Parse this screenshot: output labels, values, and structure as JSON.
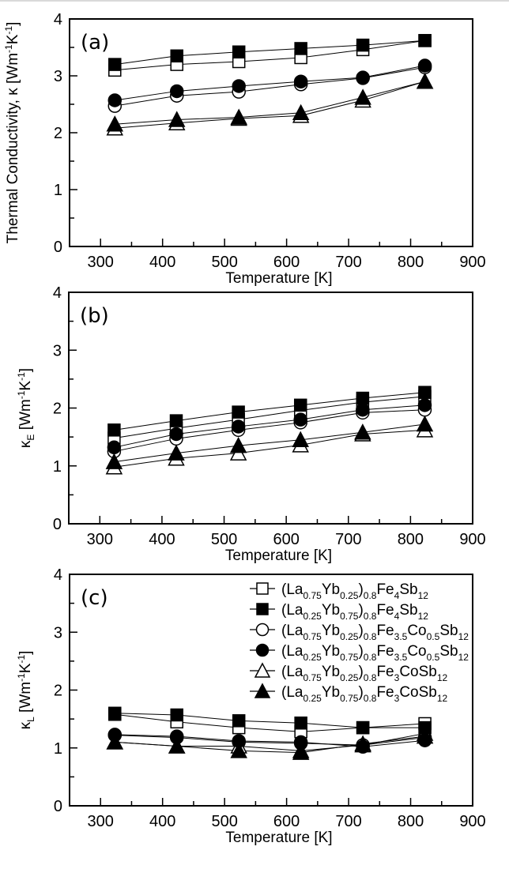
{
  "chart_data": [
    {
      "type": "line",
      "panel_label": "(a)",
      "title": "",
      "xlabel": "Temperature [K]",
      "ylabel": "Thermal Conductivity, κ [Wm-1K-1]",
      "ylabel_parts": {
        "main": "Thermal Conductivity, κ [Wm",
        "sup1": "-1",
        "mid": "K",
        "sup2": "-1",
        "end": "]"
      },
      "xlim": [
        250,
        900
      ],
      "ylim": [
        0,
        4
      ],
      "xticks": [
        300,
        400,
        500,
        600,
        700,
        800,
        900
      ],
      "yticks": [
        0,
        1,
        2,
        3,
        4
      ],
      "grid": false,
      "x": [
        323,
        423,
        523,
        623,
        723,
        823
      ],
      "series": [
        {
          "name": "(La0.75Yb0.25)0.8Fe4Sb12",
          "marker": "square-open",
          "values": [
            3.1,
            3.2,
            3.25,
            3.32,
            3.46,
            3.62
          ]
        },
        {
          "name": "(La0.25Yb0.75)0.8Fe4Sb12",
          "marker": "square-filled",
          "values": [
            3.2,
            3.35,
            3.42,
            3.48,
            3.54,
            3.62
          ]
        },
        {
          "name": "(La0.75Yb0.25)0.8Fe3.5Co0.5Sb12",
          "marker": "circle-open",
          "values": [
            2.47,
            2.65,
            2.72,
            2.85,
            2.96,
            3.15
          ]
        },
        {
          "name": "(La0.25Yb0.75)0.8Fe3.5Co0.5Sb12",
          "marker": "circle-filled",
          "values": [
            2.57,
            2.73,
            2.82,
            2.9,
            2.97,
            3.18
          ]
        },
        {
          "name": "(La0.75Yb0.25)0.8Fe3CoSb12",
          "marker": "triangle-open",
          "values": [
            2.08,
            2.17,
            2.25,
            2.3,
            2.57,
            2.9
          ]
        },
        {
          "name": "(La0.25Yb0.75)0.8Fe3CoSb12",
          "marker": "triangle-filled",
          "values": [
            2.15,
            2.23,
            2.27,
            2.35,
            2.62,
            2.9
          ]
        }
      ]
    },
    {
      "type": "line",
      "panel_label": "(b)",
      "title": "",
      "xlabel": "Temperature [K]",
      "ylabel": "κE [Wm-1K-1]",
      "ylabel_parts": {
        "main": "κ",
        "sub": "E",
        "rest": " [Wm",
        "sup1": "-1",
        "mid": "K",
        "sup2": "-1",
        "end": "]"
      },
      "xlim": [
        250,
        900
      ],
      "ylim": [
        0,
        4
      ],
      "xticks": [
        300,
        400,
        500,
        600,
        700,
        800,
        900
      ],
      "yticks": [
        0,
        1,
        2,
        3,
        4
      ],
      "grid": false,
      "x": [
        323,
        423,
        523,
        623,
        723,
        823
      ],
      "series": [
        {
          "name": "(La0.75Yb0.25)0.8Fe4Sb12",
          "marker": "square-open",
          "values": [
            1.48,
            1.65,
            1.8,
            1.96,
            2.1,
            2.2
          ]
        },
        {
          "name": "(La0.25Yb0.75)0.8Fe4Sb12",
          "marker": "square-filled",
          "values": [
            1.62,
            1.78,
            1.93,
            2.05,
            2.17,
            2.27
          ]
        },
        {
          "name": "(La0.75Yb0.25)0.8Fe3.5Co0.5Sb12",
          "marker": "circle-open",
          "values": [
            1.25,
            1.47,
            1.62,
            1.75,
            1.92,
            1.97
          ]
        },
        {
          "name": "(La0.25Yb0.75)0.8Fe3.5Co0.5Sb12",
          "marker": "circle-filled",
          "values": [
            1.32,
            1.55,
            1.68,
            1.8,
            1.97,
            2.05
          ]
        },
        {
          "name": "(La0.75Yb0.25)0.8Fe3CoSb12",
          "marker": "triangle-open",
          "values": [
            0.98,
            1.13,
            1.22,
            1.36,
            1.55,
            1.62
          ]
        },
        {
          "name": "(La0.25Yb0.75)0.8Fe3CoSb12",
          "marker": "triangle-filled",
          "values": [
            1.07,
            1.22,
            1.35,
            1.45,
            1.58,
            1.72
          ]
        }
      ]
    },
    {
      "type": "line",
      "panel_label": "(c)",
      "title": "",
      "xlabel": "Temperature [K]",
      "ylabel": "κL [Wm-1K-1]",
      "ylabel_parts": {
        "main": "κ",
        "sub": "L",
        "rest": " [Wm",
        "sup1": "-1",
        "mid": "K",
        "sup2": "-1",
        "end": "]"
      },
      "xlim": [
        250,
        900
      ],
      "ylim": [
        0,
        4
      ],
      "xticks": [
        300,
        400,
        500,
        600,
        700,
        800,
        900
      ],
      "yticks": [
        0,
        1,
        2,
        3,
        4
      ],
      "grid": false,
      "legend_position": "top-right",
      "x": [
        323,
        423,
        523,
        623,
        723,
        823
      ],
      "series": [
        {
          "name": "(La0.75Yb0.25)0.8Fe4Sb12",
          "marker": "square-open",
          "values": [
            1.58,
            1.45,
            1.35,
            1.28,
            1.35,
            1.42
          ]
        },
        {
          "name": "(La0.25Yb0.75)0.8Fe4Sb12",
          "marker": "square-filled",
          "values": [
            1.6,
            1.57,
            1.47,
            1.43,
            1.35,
            1.35
          ]
        },
        {
          "name": "(La0.75Yb0.25)0.8Fe3.5Co0.5Sb12",
          "marker": "circle-open",
          "values": [
            1.22,
            1.18,
            1.1,
            1.08,
            1.05,
            1.18
          ]
        },
        {
          "name": "(La0.25Yb0.75)0.8Fe3.5Co0.5Sb12",
          "marker": "circle-filled",
          "values": [
            1.23,
            1.2,
            1.12,
            1.1,
            1.02,
            1.13
          ]
        },
        {
          "name": "(La0.75Yb0.25)0.8Fe3CoSb12",
          "marker": "triangle-open",
          "values": [
            1.1,
            1.03,
            1.03,
            0.95,
            1.05,
            1.25
          ]
        },
        {
          "name": "(La0.25Yb0.75)0.8Fe3CoSb12",
          "marker": "triangle-filled",
          "values": [
            1.1,
            1.03,
            0.95,
            0.92,
            1.07,
            1.2
          ]
        }
      ]
    }
  ],
  "legend": [
    {
      "marker": "square-open",
      "parts": [
        {
          "t": "(La"
        },
        {
          "t": "0.75",
          "s": "sub"
        },
        {
          "t": "Yb"
        },
        {
          "t": "0.25",
          "s": "sub"
        },
        {
          "t": ")"
        },
        {
          "t": "0.8",
          "s": "sub"
        },
        {
          "t": "Fe"
        },
        {
          "t": "4",
          "s": "sub"
        },
        {
          "t": "Sb"
        },
        {
          "t": "12",
          "s": "sub"
        }
      ]
    },
    {
      "marker": "square-filled",
      "parts": [
        {
          "t": "(La"
        },
        {
          "t": "0.25",
          "s": "sub"
        },
        {
          "t": "Yb"
        },
        {
          "t": "0.75",
          "s": "sub"
        },
        {
          "t": ")"
        },
        {
          "t": "0.8",
          "s": "sub"
        },
        {
          "t": "Fe"
        },
        {
          "t": "4",
          "s": "sub"
        },
        {
          "t": "Sb"
        },
        {
          "t": "12",
          "s": "sub"
        }
      ]
    },
    {
      "marker": "circle-open",
      "parts": [
        {
          "t": "(La"
        },
        {
          "t": "0.75",
          "s": "sub"
        },
        {
          "t": "Yb"
        },
        {
          "t": "0.25",
          "s": "sub"
        },
        {
          "t": ")"
        },
        {
          "t": "0.8",
          "s": "sub"
        },
        {
          "t": "Fe"
        },
        {
          "t": "3.5",
          "s": "sub"
        },
        {
          "t": "Co"
        },
        {
          "t": "0.5",
          "s": "sub"
        },
        {
          "t": "Sb"
        },
        {
          "t": "12",
          "s": "sub"
        }
      ]
    },
    {
      "marker": "circle-filled",
      "parts": [
        {
          "t": "(La"
        },
        {
          "t": "0.25",
          "s": "sub"
        },
        {
          "t": "Yb"
        },
        {
          "t": "0.75",
          "s": "sub"
        },
        {
          "t": ")"
        },
        {
          "t": "0.8",
          "s": "sub"
        },
        {
          "t": "Fe"
        },
        {
          "t": "3.5",
          "s": "sub"
        },
        {
          "t": "Co"
        },
        {
          "t": "0.5",
          "s": "sub"
        },
        {
          "t": "Sb"
        },
        {
          "t": "12",
          "s": "sub"
        }
      ]
    },
    {
      "marker": "triangle-open",
      "parts": [
        {
          "t": "(La"
        },
        {
          "t": "0.75",
          "s": "sub"
        },
        {
          "t": "Yb"
        },
        {
          "t": "0.25",
          "s": "sub"
        },
        {
          "t": ")"
        },
        {
          "t": "0.8",
          "s": "sub"
        },
        {
          "t": "Fe"
        },
        {
          "t": "3",
          "s": "sub"
        },
        {
          "t": "CoSb"
        },
        {
          "t": "12",
          "s": "sub"
        }
      ]
    },
    {
      "marker": "triangle-filled",
      "parts": [
        {
          "t": "(La"
        },
        {
          "t": "0.25",
          "s": "sub"
        },
        {
          "t": "Yb"
        },
        {
          "t": "0.75",
          "s": "sub"
        },
        {
          "t": ")"
        },
        {
          "t": "0.8",
          "s": "sub"
        },
        {
          "t": "Fe"
        },
        {
          "t": "3",
          "s": "sub"
        },
        {
          "t": "CoSb"
        },
        {
          "t": "12",
          "s": "sub"
        }
      ]
    }
  ],
  "colors": {
    "ink": "#000000",
    "background": "#ffffff"
  }
}
